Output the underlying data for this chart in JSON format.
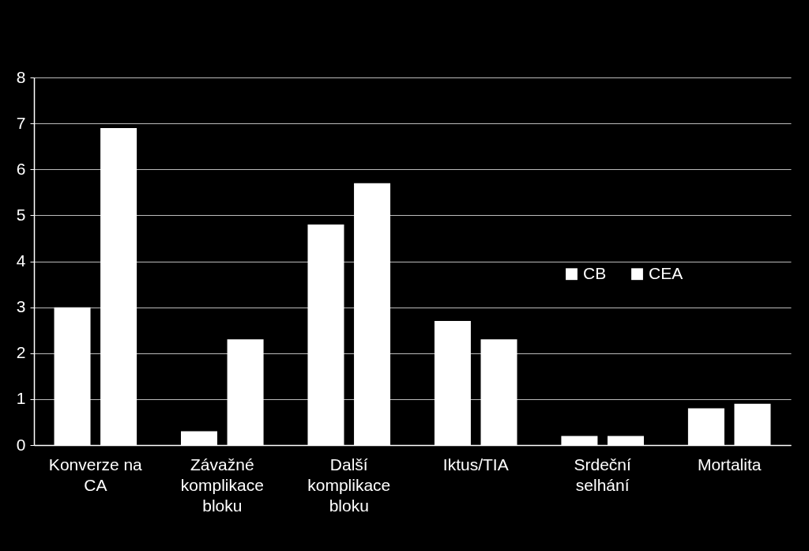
{
  "chart_data": {
    "type": "bar",
    "categories": [
      "Konverze na CA",
      "Závažné komplikace bloku",
      "Další komplikace bloku",
      "Iktus/TIA",
      "Srdeční selhání",
      "Mortalita"
    ],
    "series": [
      {
        "name": "CB",
        "color": "#ffffff",
        "values": [
          3.0,
          0.3,
          4.8,
          2.7,
          0.2,
          0.8
        ]
      },
      {
        "name": "CEA",
        "color": "#ffffff",
        "values": [
          6.9,
          2.3,
          5.7,
          2.3,
          0.2,
          0.9
        ]
      }
    ],
    "ylim": [
      0,
      8
    ],
    "yticks": [
      0,
      1,
      2,
      3,
      4,
      5,
      6,
      7,
      8
    ],
    "grid": "y",
    "legend": "right"
  }
}
